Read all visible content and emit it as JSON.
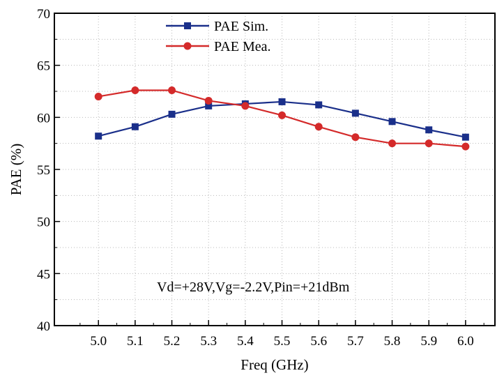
{
  "chart_data": {
    "type": "line",
    "title": "",
    "xlabel": "Freq (GHz)",
    "ylabel": "PAE (%)",
    "xlim": [
      4.88,
      6.08
    ],
    "ylim": [
      40,
      70
    ],
    "x": [
      5.0,
      5.1,
      5.2,
      5.3,
      5.4,
      5.5,
      5.6,
      5.7,
      5.8,
      5.9,
      6.0
    ],
    "x_tick_labels": [
      "5.0",
      "5.1",
      "5.2",
      "5.3",
      "5.4",
      "5.5",
      "5.6",
      "5.7",
      "5.8",
      "5.9",
      "6.0"
    ],
    "y_tick_values": [
      40,
      45,
      50,
      55,
      60,
      65,
      70
    ],
    "y_tick_labels": [
      "40",
      "45",
      "50",
      "55",
      "60",
      "65",
      "70"
    ],
    "grid": true,
    "legend_position": "top-center",
    "annotation": "Vd=+28V,Vg=-2.2V,Pin=+21dBm",
    "series": [
      {
        "name": "PAE Sim.",
        "color": "#1a2f8a",
        "marker": "square",
        "values": [
          58.2,
          59.1,
          60.3,
          61.1,
          61.3,
          61.5,
          61.2,
          60.4,
          59.6,
          58.8,
          58.1
        ]
      },
      {
        "name": "PAE Mea.",
        "color": "#d42a2a",
        "marker": "circle",
        "values": [
          62.0,
          62.6,
          62.6,
          61.6,
          61.1,
          60.2,
          59.1,
          58.1,
          57.5,
          57.5,
          57.2
        ]
      }
    ]
  }
}
